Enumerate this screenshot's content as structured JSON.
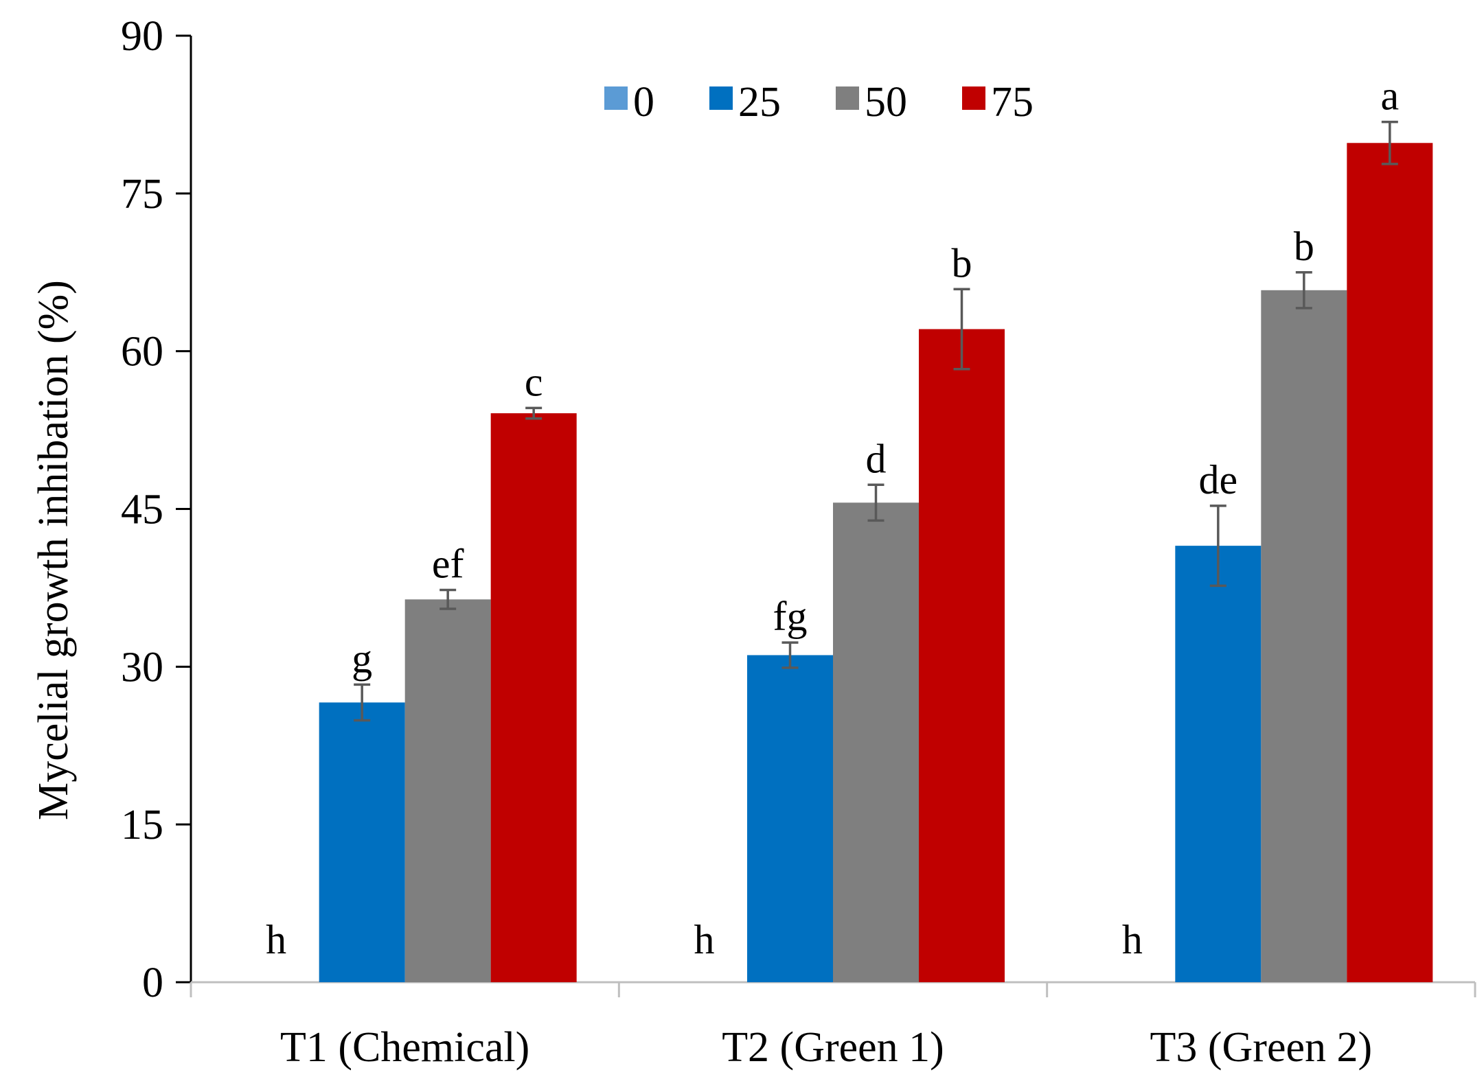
{
  "chart_data": {
    "type": "bar",
    "title": "",
    "xlabel": "",
    "ylabel": "Mycelial growth inhibation (%)",
    "ylim": [
      0,
      90
    ],
    "yticks": [
      0,
      15,
      30,
      45,
      60,
      75,
      90
    ],
    "grid": false,
    "legend_position": "top",
    "categories": [
      "T1 (Chemical)",
      "T2 (Green 1)",
      "T3 (Green 2)"
    ],
    "series": [
      {
        "name": "0",
        "color": "#5b9bd5",
        "values": [
          0,
          0,
          0
        ],
        "errors": [
          0,
          0,
          0
        ],
        "letters": [
          "h",
          "h",
          "h"
        ]
      },
      {
        "name": "25",
        "color": "#0070c0",
        "values": [
          26.6,
          31.1,
          41.5
        ],
        "errors": [
          1.7,
          1.2,
          3.8
        ],
        "letters": [
          "g",
          "fg",
          "de"
        ]
      },
      {
        "name": "50",
        "color": "#7f7f7f",
        "values": [
          36.4,
          45.6,
          65.8
        ],
        "errors": [
          0.9,
          1.7,
          1.7
        ],
        "letters": [
          "ef",
          "d",
          "b"
        ]
      },
      {
        "name": "75",
        "color": "#c00000",
        "values": [
          54.1,
          62.1,
          79.8
        ],
        "errors": [
          0.5,
          3.8,
          2.0
        ],
        "letters": [
          "c",
          "b",
          "a"
        ]
      }
    ]
  }
}
